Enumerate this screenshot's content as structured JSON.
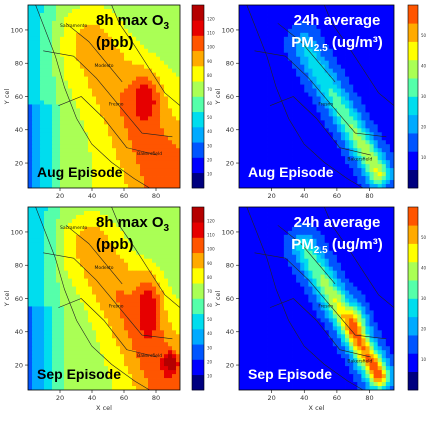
{
  "chart_data": [
    {
      "type": "heatmap",
      "title_line1": "8h max O",
      "title_sub1": "3",
      "title_line2": "(ppb)",
      "episode": "Aug Episode",
      "xlabel": "",
      "ylabel": "Y cel",
      "xticks": [
        "20",
        "40",
        "60",
        "80"
      ],
      "yticks": [
        "20",
        "40",
        "60",
        "80",
        "100"
      ],
      "xlim": [
        0,
        95
      ],
      "ylim": [
        5,
        115
      ],
      "places": [
        "Sacramento",
        "Modesto",
        "Fresno",
        "Bakersfield"
      ],
      "colorbar_ticks": [
        "10",
        "20",
        "30",
        "40",
        "50",
        "60",
        "70",
        "80",
        "90",
        "100",
        "110",
        "120"
      ],
      "colormap": [
        "#00007f",
        "#0000ff",
        "#0055ff",
        "#00aaff",
        "#00ddee",
        "#55ffaa",
        "#aaff55",
        "#ffff00",
        "#ffaa00",
        "#ff5500",
        "#e60000",
        "#b40000"
      ]
    },
    {
      "type": "heatmap",
      "title_line1": "24h average",
      "title_line2": "PM",
      "title_sub2": "2.5",
      "title_tail2": " (ug/m³)",
      "episode": "Aug Episode",
      "xlabel": "",
      "ylabel": "Y cel",
      "xticks": [
        "20",
        "40",
        "60",
        "80"
      ],
      "yticks": [
        "20",
        "40",
        "60",
        "80",
        "100"
      ],
      "xlim": [
        0,
        95
      ],
      "ylim": [
        5,
        115
      ],
      "places": [
        "Fresno",
        "Bakersfield"
      ],
      "colorbar_ticks": [
        "10",
        "20",
        "30",
        "40",
        "50"
      ],
      "colormap": [
        "#00007f",
        "#0000ff",
        "#0055ff",
        "#00aaff",
        "#00ddee",
        "#55ffaa",
        "#aaff55",
        "#ffff00",
        "#ffaa00",
        "#ff5500"
      ]
    },
    {
      "type": "heatmap",
      "title_line1": "8h max O",
      "title_sub1": "3",
      "title_line2": "(ppb)",
      "episode": "Sep Episode",
      "xlabel": "X cel",
      "ylabel": "Y cel",
      "xticks": [
        "20",
        "40",
        "60",
        "80"
      ],
      "yticks": [
        "20",
        "40",
        "60",
        "80",
        "100"
      ],
      "xlim": [
        0,
        95
      ],
      "ylim": [
        5,
        115
      ],
      "places": [
        "Sacramento",
        "Modesto",
        "Fresno",
        "Bakersfield"
      ],
      "colorbar_ticks": [
        "10",
        "20",
        "30",
        "40",
        "50",
        "60",
        "70",
        "80",
        "90",
        "100",
        "110",
        "120"
      ],
      "colormap": [
        "#00007f",
        "#0000ff",
        "#0055ff",
        "#00aaff",
        "#00ddee",
        "#55ffaa",
        "#aaff55",
        "#ffff00",
        "#ffaa00",
        "#ff5500",
        "#e60000",
        "#b40000"
      ]
    },
    {
      "type": "heatmap",
      "title_line1": "24h average",
      "title_line2": "PM",
      "title_sub2": "2.5",
      "title_tail2": " (ug/m³)",
      "episode": "Sep Episode",
      "xlabel": "X cel",
      "ylabel": "Y cel",
      "xticks": [
        "20",
        "40",
        "60",
        "80"
      ],
      "yticks": [
        "20",
        "40",
        "60",
        "80",
        "100"
      ],
      "xlim": [
        0,
        95
      ],
      "ylim": [
        5,
        115
      ],
      "places": [
        "Fresno",
        "Bakersfield"
      ],
      "colorbar_ticks": [
        "10",
        "20",
        "30",
        "40",
        "50"
      ],
      "colormap": [
        "#00007f",
        "#0000ff",
        "#0055ff",
        "#00aaff",
        "#00ddee",
        "#55ffaa",
        "#aaff55",
        "#ffff00",
        "#ffaa00",
        "#ff5500"
      ]
    }
  ]
}
